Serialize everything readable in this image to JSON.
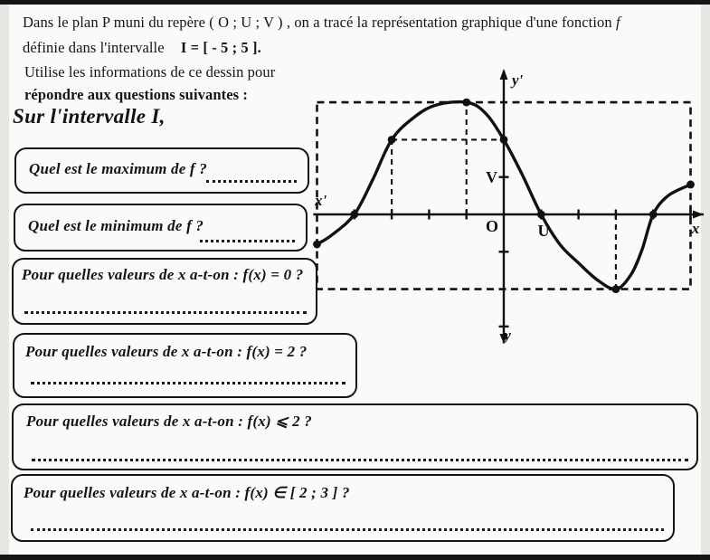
{
  "document": {
    "line1_text": "Dans le plan P muni du repère ( O ;  U ;  V ) , on a tracé la représentation graphique d'une fonction",
    "line1_fname": "f",
    "line2_text": "définie dans l'intervalle",
    "line2_bold": "I = [ - 5 ; 5 ].",
    "line3_text": "Utilise les informations de ce dessin pour",
    "line4_bold": "répondre aux questions suivantes :",
    "subtitle": "Sur l'intervalle I,"
  },
  "questions": [
    {
      "id": "maximum",
      "label": "Quel est le maximum de f  ?"
    },
    {
      "id": "minimum",
      "label": "Quel est le minimum de f  ?"
    },
    {
      "id": "fx-egal-0",
      "label": "Pour quelles valeurs de x  a-t-on : f(x) = 0 ?"
    },
    {
      "id": "fx-egal-2",
      "label": "Pour quelles valeurs de x  a-t-on :  f(x) = 2  ?"
    },
    {
      "id": "fx-inf-2",
      "label": "Pour quelles valeurs de x  a-t-on :  f(x)  ⩽  2  ?"
    },
    {
      "id": "fx-dans-2-3",
      "label": "Pour quelles valeurs de x  a-t-on :   f(x)  ∈  [ 2 ; 3 ]   ?"
    }
  ],
  "graph": {
    "labels": {
      "y_top": "y'",
      "y_bottom": "y",
      "x_left": "x'",
      "x_right": "x",
      "origin": "O",
      "u": "U",
      "v": "V"
    }
  },
  "chart_data": {
    "type": "line",
    "title": "Représentation graphique de la fonction f sur I = [-5 ; 5]",
    "xlim": [
      -5,
      5
    ],
    "ylim_shown": [
      -3.5,
      4
    ],
    "x_ticks": [
      -4,
      -3,
      -2,
      -1,
      1,
      2,
      3,
      4,
      5
    ],
    "y_ticks": [
      1,
      -1,
      -3
    ],
    "key_points": [
      [
        -5,
        -0.8
      ],
      [
        -4,
        0
      ],
      [
        -3,
        2
      ],
      [
        -1,
        3
      ],
      [
        0,
        2
      ],
      [
        1,
        0
      ],
      [
        3,
        -2
      ],
      [
        4,
        0
      ],
      [
        5,
        0.8
      ]
    ],
    "maximum": {
      "x": -1,
      "y": 3
    },
    "minimum": {
      "x": 3,
      "y": -2
    },
    "zeros": [
      -4,
      1,
      4
    ],
    "dashed_box": {
      "x1": -5,
      "x2": 5,
      "y1": -2,
      "y2": 3
    },
    "guides": [
      {
        "type": "v",
        "x": -3,
        "y1": 0,
        "y2": 2
      },
      {
        "type": "h",
        "y": 2,
        "x1": -3,
        "x2": 0
      },
      {
        "type": "v",
        "x": -1,
        "y1": 0,
        "y2": 3
      },
      {
        "type": "v",
        "x": 3,
        "y1": 0,
        "y2": -2
      }
    ],
    "curve_samples": [
      [
        -5,
        -0.8
      ],
      [
        -4.6,
        -0.55
      ],
      [
        -4,
        0
      ],
      [
        -3.5,
        0.95
      ],
      [
        -3,
        2
      ],
      [
        -2.4,
        2.6
      ],
      [
        -1.8,
        2.93
      ],
      [
        -1,
        3
      ],
      [
        -0.5,
        2.72
      ],
      [
        0,
        2
      ],
      [
        0.5,
        1.05
      ],
      [
        1,
        0
      ],
      [
        1.5,
        -0.8
      ],
      [
        2,
        -1.3
      ],
      [
        2.5,
        -1.75
      ],
      [
        3,
        -2
      ],
      [
        3.4,
        -1.62
      ],
      [
        3.7,
        -0.95
      ],
      [
        4,
        0
      ],
      [
        4.4,
        0.5
      ],
      [
        5,
        0.8
      ]
    ]
  }
}
